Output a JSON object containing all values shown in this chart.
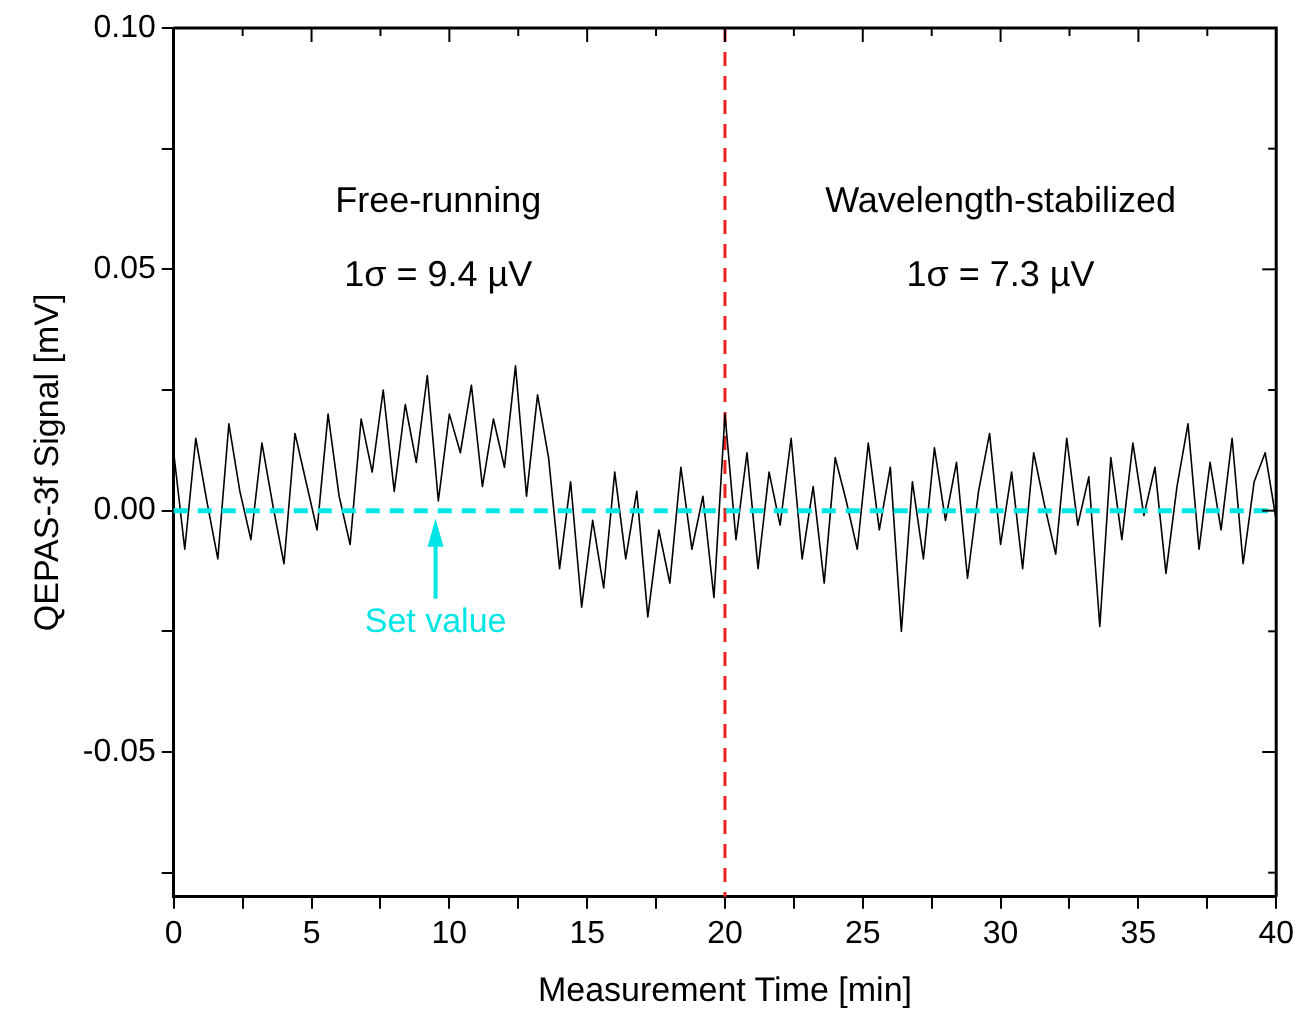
{
  "chart_data": {
    "type": "line",
    "xlabel": "Measurement Time [min]",
    "ylabel": "QEPAS-3f Signal [mV]",
    "xlim": [
      0,
      40
    ],
    "ylim": [
      -0.08,
      0.1
    ],
    "xticks": [
      0,
      {
        "value": 2.5,
        "label": null
      },
      5,
      {
        "value": 7.5,
        "label": null
      },
      10,
      {
        "value": 12.5,
        "label": null
      },
      15,
      {
        "value": 17.5,
        "label": null
      },
      20,
      {
        "value": 22.5,
        "label": null
      },
      25,
      {
        "value": 27.5,
        "label": null
      },
      30,
      {
        "value": 32.5,
        "label": null
      },
      35,
      {
        "value": 37.5,
        "label": null
      },
      40
    ],
    "yticks": [
      {
        "value": -0.075,
        "label": null
      },
      {
        "value": -0.05,
        "label": "-0.05"
      },
      {
        "value": -0.025,
        "label": null
      },
      {
        "value": 0,
        "label": "0.00"
      },
      {
        "value": 0.025,
        "label": null
      },
      {
        "value": 0.05,
        "label": "0.05"
      },
      {
        "value": 0.075,
        "label": null
      },
      {
        "value": 0.1,
        "label": "0.10"
      }
    ],
    "grid": false,
    "legend": false,
    "x": [
      0,
      0.4,
      0.8,
      1.2,
      1.6,
      2,
      2.4,
      2.8,
      3.2,
      3.6,
      4,
      4.4,
      4.8,
      5.2,
      5.6,
      6,
      6.4,
      6.8,
      7.2,
      7.6,
      8,
      8.4,
      8.8,
      9.2,
      9.6,
      10,
      10.4,
      10.8,
      11.2,
      11.6,
      12,
      12.4,
      12.8,
      13.2,
      13.6,
      14,
      14.4,
      14.8,
      15.2,
      15.6,
      16,
      16.4,
      16.8,
      17.2,
      17.6,
      18,
      18.4,
      18.8,
      19.2,
      19.6,
      20,
      20.4,
      20.8,
      21.2,
      21.6,
      22,
      22.4,
      22.8,
      23.2,
      23.6,
      24,
      24.4,
      24.8,
      25.2,
      25.6,
      26,
      26.4,
      26.8,
      27.2,
      27.6,
      28,
      28.4,
      28.8,
      29.2,
      29.6,
      30,
      30.4,
      30.8,
      31.2,
      31.6,
      32,
      32.4,
      32.8,
      33.2,
      33.6,
      34,
      34.4,
      34.8,
      35.2,
      35.6,
      36,
      36.4,
      36.8,
      37.2,
      37.6,
      38,
      38.4,
      38.8,
      39.2,
      39.6,
      40
    ],
    "series": [
      {
        "color": "#000000",
        "line_style": "solid",
        "values": [
          0.012,
          -0.008,
          0.015,
          0.002,
          -0.01,
          0.018,
          0.004,
          -0.006,
          0.014,
          0.001,
          -0.011,
          0.016,
          0.006,
          -0.004,
          0.02,
          0.003,
          -0.007,
          0.019,
          0.008,
          0.025,
          0.004,
          0.022,
          0.01,
          0.028,
          0.002,
          0.02,
          0.012,
          0.026,
          0.005,
          0.019,
          0.009,
          0.03,
          0.003,
          0.024,
          0.011,
          -0.012,
          0.006,
          -0.02,
          -0.002,
          -0.016,
          0.008,
          -0.01,
          0.004,
          -0.022,
          -0.004,
          -0.015,
          0.009,
          -0.008,
          0.003,
          -0.018,
          0.02,
          -0.006,
          0.012,
          -0.012,
          0.008,
          -0.003,
          0.015,
          -0.01,
          0.005,
          -0.015,
          0.011,
          0.002,
          -0.008,
          0.014,
          -0.004,
          0.009,
          -0.025,
          0.006,
          -0.01,
          0.013,
          -0.002,
          0.01,
          -0.014,
          0.004,
          0.016,
          -0.007,
          0.008,
          -0.012,
          0.012,
          0.001,
          -0.009,
          0.015,
          -0.003,
          0.007,
          -0.024,
          0.011,
          -0.006,
          0.014,
          -0.001,
          0.009,
          -0.013,
          0.005,
          0.018,
          -0.008,
          0.01,
          -0.004,
          0.015,
          -0.011,
          0.006,
          0.012,
          -0.002
        ]
      }
    ],
    "ref_lines": [
      {
        "axis": "y",
        "value": 0,
        "color": "#00e5e5",
        "line_style": "dashed"
      },
      {
        "axis": "x",
        "value": 20,
        "color": "#e8231f",
        "line_style": "dashed"
      }
    ],
    "annotations": [
      "Free-running",
      "1σ = 9.4 µV",
      "Wavelength-stabilized",
      "1σ = 7.3 µV",
      {
        "text": "Set value",
        "x": 9.5,
        "y": 0
      }
    ]
  }
}
